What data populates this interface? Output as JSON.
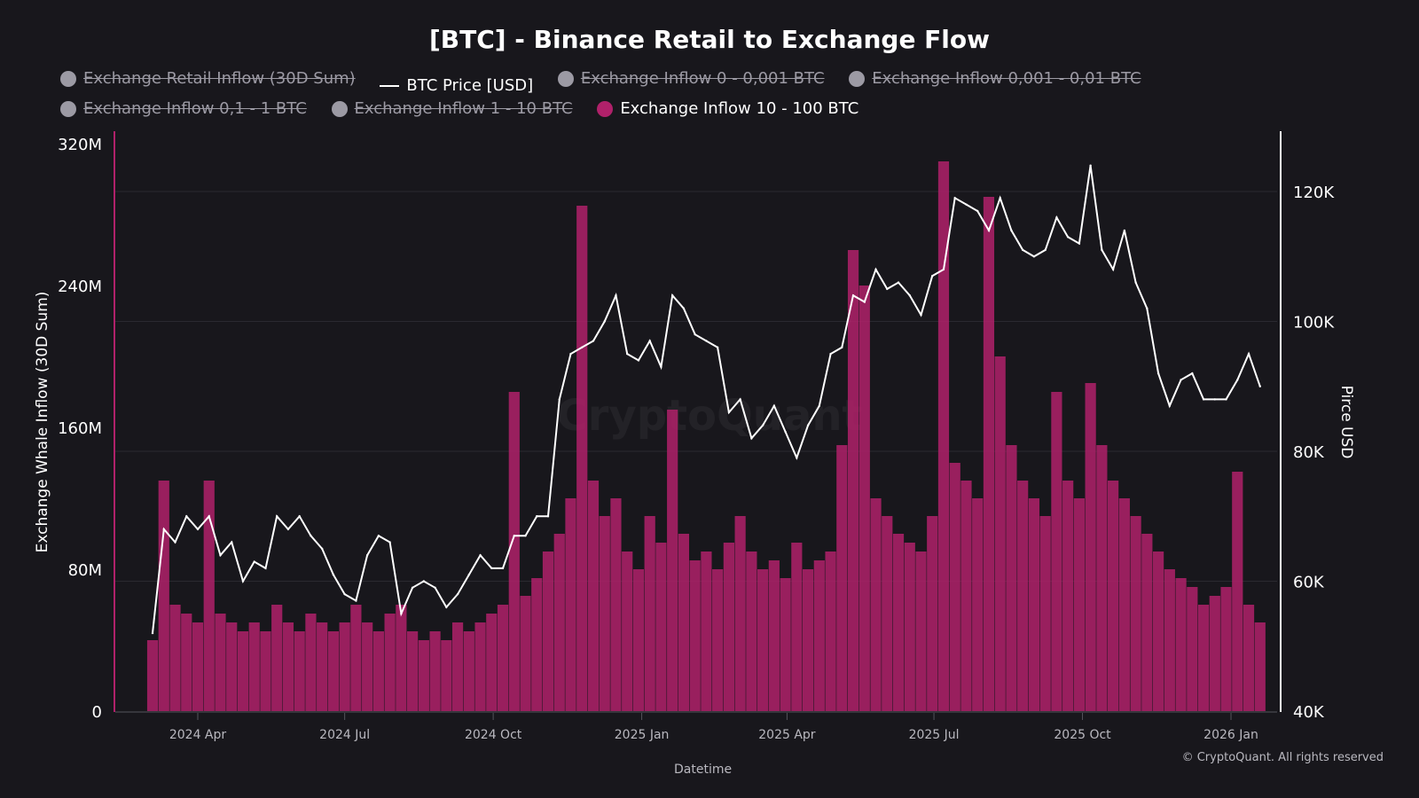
{
  "chart_data": {
    "type": "bar+line",
    "title": "[BTC] - Binance Retail to Exchange Flow",
    "xlabel": "Datetime",
    "ylabel_left": "Exchange Whale Inflow (30D Sum)",
    "ylabel_right": "Pirce USD",
    "ylim_left": [
      0,
      320000000
    ],
    "ylim_right": [
      40000,
      130000
    ],
    "yticks_left": [
      "0",
      "80M",
      "160M",
      "240M",
      "320M"
    ],
    "yticks_right": [
      "40K",
      "60K",
      "80K",
      "100K",
      "120K"
    ],
    "xticks": [
      "2024 Apr",
      "2024 Jul",
      "2024 Oct",
      "2025 Jan",
      "2025 Apr",
      "2025 Jul",
      "2025 Oct",
      "2026 Jan"
    ],
    "grid": true,
    "legend_position": "top",
    "watermark": "CryptoQuant",
    "copyright": "© CryptoQuant. All rights reserved",
    "legend": [
      {
        "name": "Exchange Retail Inflow (30D Sum)",
        "visible": false,
        "color": "#9c9aa4",
        "marker": "dot"
      },
      {
        "name": "BTC Price [USD]",
        "visible": true,
        "color": "#ffffff",
        "marker": "line"
      },
      {
        "name": "Exchange Inflow 0 - 0,001 BTC",
        "visible": false,
        "color": "#9c9aa4",
        "marker": "dot"
      },
      {
        "name": "Exchange Inflow 0,001 - 0,01 BTC",
        "visible": false,
        "color": "#9c9aa4",
        "marker": "dot"
      },
      {
        "name": "Exchange Inflow 0,1 - 1 BTC",
        "visible": false,
        "color": "#9c9aa4",
        "marker": "dot"
      },
      {
        "name": "Exchange Inflow 1 - 10 BTC",
        "visible": false,
        "color": "#9c9aa4",
        "marker": "dot"
      },
      {
        "name": "Exchange Inflow 10 - 100 BTC",
        "visible": true,
        "color": "#b0216a",
        "marker": "dot"
      }
    ],
    "x": [
      "2024-03-04",
      "2024-03-11",
      "2024-03-18",
      "2024-03-25",
      "2024-04-01",
      "2024-04-08",
      "2024-04-15",
      "2024-04-22",
      "2024-04-29",
      "2024-05-06",
      "2024-05-13",
      "2024-05-20",
      "2024-05-27",
      "2024-06-03",
      "2024-06-10",
      "2024-06-17",
      "2024-06-24",
      "2024-07-01",
      "2024-07-08",
      "2024-07-15",
      "2024-07-22",
      "2024-07-29",
      "2024-08-05",
      "2024-08-12",
      "2024-08-19",
      "2024-08-26",
      "2024-09-02",
      "2024-09-09",
      "2024-09-16",
      "2024-09-23",
      "2024-09-30",
      "2024-10-07",
      "2024-10-14",
      "2024-10-21",
      "2024-10-28",
      "2024-11-04",
      "2024-11-11",
      "2024-11-18",
      "2024-11-25",
      "2024-12-02",
      "2024-12-09",
      "2024-12-16",
      "2024-12-23",
      "2024-12-30",
      "2025-01-06",
      "2025-01-13",
      "2025-01-20",
      "2025-01-27",
      "2025-02-03",
      "2025-02-10",
      "2025-02-17",
      "2025-02-24",
      "2025-03-03",
      "2025-03-10",
      "2025-03-17",
      "2025-03-24",
      "2025-03-31",
      "2025-04-07",
      "2025-04-14",
      "2025-04-21",
      "2025-04-28",
      "2025-05-05",
      "2025-05-12",
      "2025-05-19",
      "2025-05-26",
      "2025-06-02",
      "2025-06-09",
      "2025-06-16",
      "2025-06-23",
      "2025-06-30",
      "2025-07-07",
      "2025-07-14",
      "2025-07-21",
      "2025-07-28",
      "2025-08-04",
      "2025-08-11",
      "2025-08-18",
      "2025-08-25",
      "2025-09-01",
      "2025-09-08",
      "2025-09-15",
      "2025-09-22",
      "2025-09-29",
      "2025-10-06",
      "2025-10-13",
      "2025-10-20",
      "2025-10-27",
      "2025-11-03",
      "2025-11-10",
      "2025-11-17",
      "2025-11-24",
      "2025-12-01",
      "2025-12-08",
      "2025-12-15",
      "2025-12-22",
      "2025-12-29",
      "2026-01-05",
      "2026-01-12",
      "2026-01-19"
    ],
    "series": [
      {
        "name": "BTC Price [USD]",
        "type": "line",
        "axis": "right",
        "values": [
          52000,
          68000,
          66000,
          70000,
          68000,
          70000,
          64000,
          66000,
          60000,
          63000,
          62000,
          70000,
          68000,
          70000,
          67000,
          65000,
          61000,
          58000,
          57000,
          64000,
          67000,
          66000,
          55000,
          59000,
          60000,
          59000,
          56000,
          58000,
          61000,
          64000,
          62000,
          62000,
          67000,
          67000,
          70000,
          70000,
          88000,
          95000,
          96000,
          97000,
          100000,
          104000,
          95000,
          94000,
          97000,
          93000,
          104000,
          102000,
          98000,
          97000,
          96000,
          86000,
          88000,
          82000,
          84000,
          87000,
          83000,
          79000,
          84000,
          87000,
          95000,
          96000,
          104000,
          103000,
          108000,
          105000,
          106000,
          104000,
          101000,
          107000,
          108000,
          119000,
          118000,
          117000,
          114000,
          119000,
          114000,
          111000,
          110000,
          111000,
          116000,
          113000,
          112000,
          124000,
          111000,
          108000,
          114000,
          106000,
          102000,
          92000,
          87000,
          91000,
          92000,
          88000,
          88000,
          88000,
          91000,
          95000,
          90000
        ]
      },
      {
        "name": "Exchange Inflow 10 - 100 BTC",
        "type": "bar",
        "axis": "left",
        "values": [
          40000000.0,
          130000000.0,
          60000000.0,
          55000000.0,
          50000000.0,
          130000000.0,
          55000000.0,
          50000000.0,
          45000000.0,
          50000000.0,
          45000000.0,
          60000000.0,
          50000000.0,
          45000000.0,
          55000000.0,
          50000000.0,
          45000000.0,
          50000000.0,
          60000000.0,
          50000000.0,
          45000000.0,
          55000000.0,
          60000000.0,
          45000000.0,
          40000000.0,
          45000000.0,
          40000000.0,
          50000000.0,
          45000000.0,
          50000000.0,
          55000000.0,
          60000000.0,
          180000000.0,
          65000000.0,
          75000000.0,
          90000000.0,
          100000000.0,
          120000000.0,
          285000000.0,
          130000000.0,
          110000000.0,
          120000000.0,
          90000000.0,
          80000000.0,
          110000000.0,
          95000000.0,
          170000000.0,
          100000000.0,
          85000000.0,
          90000000.0,
          80000000.0,
          95000000.0,
          110000000.0,
          90000000.0,
          80000000.0,
          85000000.0,
          75000000.0,
          95000000.0,
          80000000.0,
          85000000.0,
          90000000.0,
          150000000.0,
          260000000.0,
          240000000.0,
          120000000.0,
          110000000.0,
          100000000.0,
          95000000.0,
          90000000.0,
          110000000.0,
          310000000.0,
          140000000.0,
          130000000.0,
          120000000.0,
          290000000.0,
          200000000.0,
          150000000.0,
          130000000.0,
          120000000.0,
          110000000.0,
          180000000.0,
          130000000.0,
          120000000.0,
          185000000.0,
          150000000.0,
          130000000.0,
          120000000.0,
          110000000.0,
          100000000.0,
          90000000.0,
          80000000.0,
          75000000.0,
          70000000.0,
          60000000.0,
          65000000.0,
          70000000.0,
          135000000.0,
          60000000.0,
          50000000.0
        ]
      }
    ]
  }
}
